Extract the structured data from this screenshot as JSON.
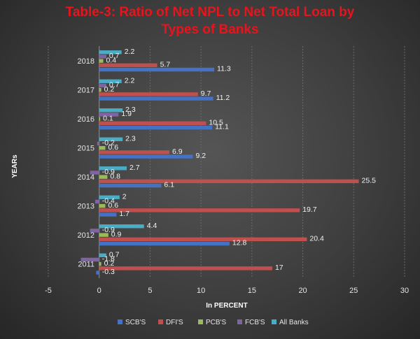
{
  "chart_data": {
    "type": "bar",
    "orientation": "horizontal",
    "title_line1": "Table-3: Ratio of Net NPL to Net Total Loan by",
    "title_line2": "Types of Banks",
    "xlabel": "In PERCENT",
    "ylabel": "YEARs",
    "xlim": [
      -5,
      30
    ],
    "xticks": [
      -5,
      0,
      5,
      10,
      15,
      20,
      25,
      30
    ],
    "grid": true,
    "legend_position": "bottom",
    "categories": [
      "2011",
      "2012",
      "2013",
      "2014",
      "2015",
      "2016",
      "2017",
      "2018"
    ],
    "series": [
      {
        "name": "SCB'S",
        "color": "#4472c4",
        "values": [
          -0.3,
          12.8,
          1.7,
          6.1,
          9.2,
          11.1,
          11.2,
          11.3
        ]
      },
      {
        "name": "DFI'S",
        "color": "#c0504d",
        "values": [
          17,
          20.4,
          19.7,
          25.5,
          6.9,
          10.5,
          9.7,
          5.7
        ]
      },
      {
        "name": "PCB'S",
        "color": "#9bbb59",
        "values": [
          0.2,
          0.9,
          0.6,
          0.8,
          0.6,
          0.1,
          0.2,
          0.4
        ]
      },
      {
        "name": "FCB'S",
        "color": "#8064a2",
        "values": [
          -1.8,
          -0.9,
          -0.4,
          -0.9,
          -0.2,
          1.9,
          0.7,
          0.7
        ]
      },
      {
        "name": "All Banks",
        "color": "#4bacc6",
        "values": [
          0.7,
          4.4,
          2,
          2.7,
          2.3,
          2.3,
          2.2,
          2.2
        ]
      }
    ]
  }
}
